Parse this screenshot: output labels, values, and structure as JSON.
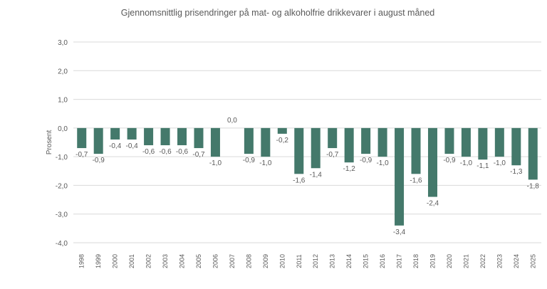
{
  "chart_data": {
    "type": "bar",
    "title": "Gjennomsnittlig prisendringer på mat- og alkoholfrie drikkevarer i august måned",
    "xlabel": "",
    "ylabel": "Prosent",
    "ylim": [
      -4,
      3
    ],
    "yticks": [
      "3,0",
      "2,0",
      "1,0",
      "0,0",
      "-1,0",
      "-2,0",
      "-3,0",
      "-4,0"
    ],
    "grid": true,
    "bar_color": "#44796b",
    "categories": [
      "1998",
      "1999",
      "2000",
      "2001",
      "2002",
      "2003",
      "2004",
      "2005",
      "2006",
      "2007",
      "2008",
      "2009",
      "2010",
      "2011",
      "2012",
      "2013",
      "2014",
      "2015",
      "2016",
      "2017",
      "2018",
      "2019",
      "2020",
      "2021",
      "2022",
      "2023",
      "2024",
      "2025"
    ],
    "values": [
      -0.7,
      -0.9,
      -0.4,
      -0.4,
      -0.6,
      -0.6,
      -0.6,
      -0.7,
      -1.0,
      0.0,
      -0.9,
      -1.0,
      -0.2,
      -1.6,
      -1.4,
      -0.7,
      -1.2,
      -0.9,
      -1.0,
      -3.4,
      -1.6,
      -2.4,
      -0.9,
      -1.0,
      -1.1,
      -1.0,
      -1.3,
      -1.8
    ],
    "data_labels": [
      "-0,7",
      "-0,9",
      "-0,4",
      "-0,4",
      "-0,6",
      "-0,6",
      "-0,6",
      "-0,7",
      "-1,0",
      "0,0",
      "-0,9",
      "-1,0",
      "-0,2",
      "-1,6",
      "-1,4",
      "-0,7",
      "-1,2",
      "-0,9",
      "-1,0",
      "-3,4",
      "-1,6",
      "-2,4",
      "-0,9",
      "-1,0",
      "-1,1",
      "-1,0",
      "-1,3",
      "-1,8"
    ]
  }
}
